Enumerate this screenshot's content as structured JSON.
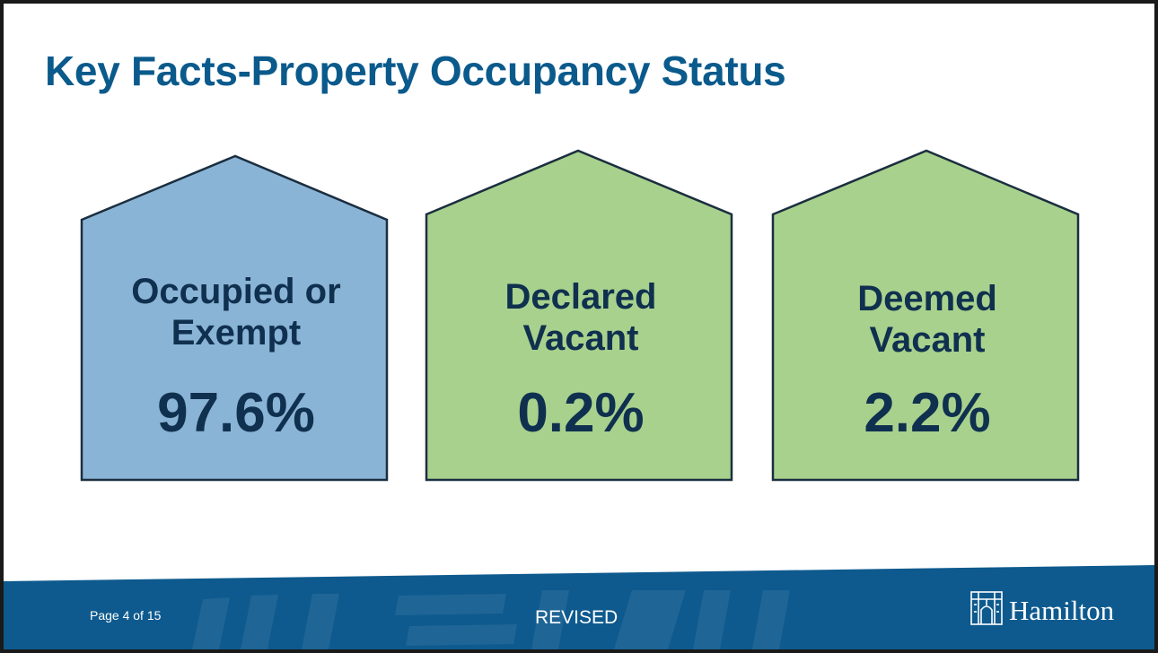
{
  "slide": {
    "title": "Key Facts-Property Occupancy Status"
  },
  "cards": [
    {
      "line1": "Occupied or",
      "line2": "Exempt",
      "value": "97.6%",
      "fill": "#8ab4d6"
    },
    {
      "line1": "Declared",
      "line2": "Vacant",
      "value": "0.2%",
      "fill": "#a8d18d"
    },
    {
      "line1": "Deemed",
      "line2": "Vacant",
      "value": "2.2%",
      "fill": "#a8d18d"
    }
  ],
  "footer": {
    "page": "Page 4 of 15",
    "status": "REVISED",
    "logo_text": "Hamilton",
    "band_color": "#0e5a8e"
  },
  "colors": {
    "title": "#0b5a8c",
    "card_text": "#10304f",
    "card_border": "#1b2e3f"
  }
}
